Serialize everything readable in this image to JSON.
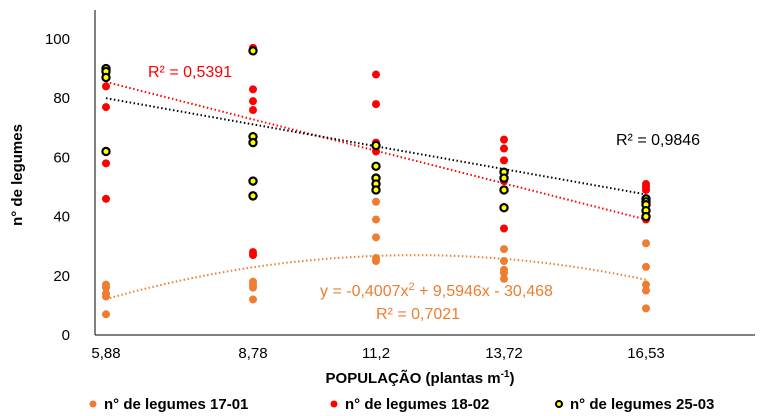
{
  "chart_data": {
    "type": "scatter",
    "xlabel": "POPULAÇÃO (plantas m",
    "xlabel_sup": "-1",
    "xlabel_end": ")",
    "ylabel": "n° de legumes",
    "categories": [
      "5,88",
      "8,78",
      "11,2",
      "13,72",
      "16,53"
    ],
    "x_numeric": [
      5.88,
      8.78,
      11.2,
      13.72,
      16.53
    ],
    "ylim": [
      0,
      100
    ],
    "yticks": [
      0,
      20,
      40,
      60,
      80,
      100
    ],
    "grid": false,
    "legend_position": "bottom",
    "series": [
      {
        "name": "n° de legumes  17-01",
        "color": "#ed7d31",
        "points": [
          [
            5.88,
            17
          ],
          [
            5.88,
            16
          ],
          [
            5.88,
            14
          ],
          [
            5.88,
            13
          ],
          [
            5.88,
            7
          ],
          [
            8.78,
            18
          ],
          [
            8.78,
            17
          ],
          [
            8.78,
            16
          ],
          [
            8.78,
            12
          ],
          [
            11.2,
            45
          ],
          [
            11.2,
            39
          ],
          [
            11.2,
            33
          ],
          [
            11.2,
            26
          ],
          [
            11.2,
            25
          ],
          [
            13.72,
            29
          ],
          [
            13.72,
            25
          ],
          [
            13.72,
            22
          ],
          [
            13.72,
            21
          ],
          [
            13.72,
            19
          ],
          [
            16.53,
            31
          ],
          [
            16.53,
            23
          ],
          [
            16.53,
            17
          ],
          [
            16.53,
            15
          ],
          [
            16.53,
            9
          ]
        ],
        "trendline": {
          "type": "polynomial",
          "a": -0.4007,
          "b": 9.5946,
          "c": -30.468
        }
      },
      {
        "name": "n° de legumes  18-02",
        "color": "#ff0000",
        "points": [
          [
            5.88,
            88
          ],
          [
            5.88,
            84
          ],
          [
            5.88,
            77
          ],
          [
            5.88,
            58
          ],
          [
            5.88,
            46
          ],
          [
            8.78,
            97
          ],
          [
            8.78,
            83
          ],
          [
            8.78,
            79
          ],
          [
            8.78,
            76
          ],
          [
            8.78,
            28
          ],
          [
            8.78,
            27
          ],
          [
            11.2,
            88
          ],
          [
            11.2,
            78
          ],
          [
            11.2,
            65
          ],
          [
            11.2,
            64
          ],
          [
            11.2,
            62
          ],
          [
            13.72,
            66
          ],
          [
            13.72,
            63
          ],
          [
            13.72,
            59
          ],
          [
            13.72,
            52
          ],
          [
            13.72,
            36
          ],
          [
            16.53,
            51
          ],
          [
            16.53,
            50
          ],
          [
            16.53,
            49
          ],
          [
            16.53,
            45
          ],
          [
            16.53,
            39
          ]
        ],
        "trendline": {
          "type": "linear",
          "from": [
            5.88,
            85.5
          ],
          "to": [
            16.53,
            39
          ]
        }
      },
      {
        "name": "n° de legumes 25-03",
        "color": "#000000",
        "fill": "#ffff00",
        "points": [
          [
            5.88,
            90
          ],
          [
            5.88,
            89
          ],
          [
            5.88,
            87
          ],
          [
            5.88,
            62
          ],
          [
            8.78,
            96
          ],
          [
            8.78,
            67
          ],
          [
            8.78,
            65
          ],
          [
            8.78,
            52
          ],
          [
            8.78,
            47
          ],
          [
            11.2,
            64
          ],
          [
            11.2,
            57
          ],
          [
            11.2,
            53
          ],
          [
            11.2,
            51
          ],
          [
            11.2,
            49
          ],
          [
            13.72,
            55
          ],
          [
            13.72,
            53
          ],
          [
            13.72,
            49
          ],
          [
            13.72,
            43
          ],
          [
            16.53,
            46
          ],
          [
            16.53,
            45
          ],
          [
            16.53,
            44
          ],
          [
            16.53,
            42
          ],
          [
            16.53,
            40
          ]
        ],
        "trendline": {
          "type": "linear",
          "from": [
            5.88,
            80
          ],
          "to": [
            16.53,
            47.5
          ]
        }
      }
    ],
    "annotations": {
      "r2_red": "R² = 0,5391",
      "r2_black": "R² = 0,9846",
      "eq_orange_a": "y = -0,4007x",
      "eq_orange_sup": "2",
      "eq_orange_b": " + 9,5946x - 30,468",
      "r2_orange": "R² = 0,7021"
    }
  }
}
